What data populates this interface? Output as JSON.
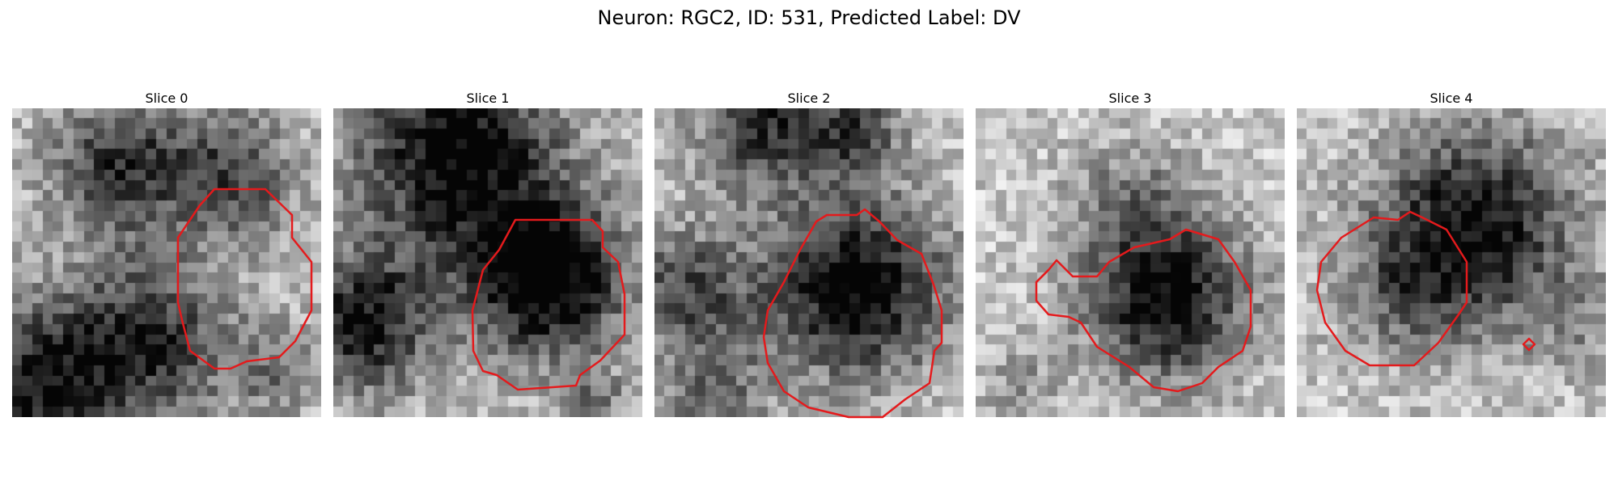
{
  "figure": {
    "title": "Neuron: RGC2, ID: 531, Predicted Label: DV"
  },
  "panels": [
    {
      "title": "Slice 0"
    },
    {
      "title": "Slice 1"
    },
    {
      "title": "Slice 2"
    },
    {
      "title": "Slice 3"
    },
    {
      "title": "Slice 4"
    }
  ],
  "colors": {
    "contour": "#e41a1c",
    "background": "#ffffff"
  }
}
